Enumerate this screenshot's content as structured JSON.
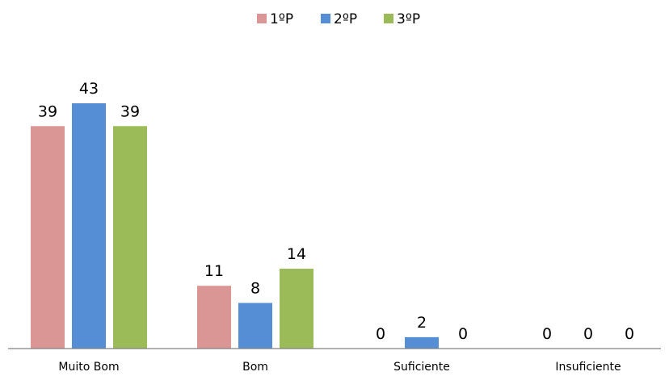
{
  "chart_data": {
    "type": "bar",
    "categories": [
      "Muito Bom",
      "Bom",
      "Suficiente",
      "Insuficiente"
    ],
    "series": [
      {
        "name": "1ºP",
        "color": "#d99694",
        "values": [
          39,
          11,
          0,
          0
        ]
      },
      {
        "name": "2ºP",
        "color": "#558ed5",
        "values": [
          43,
          8,
          2,
          0
        ]
      },
      {
        "name": "3ºP",
        "color": "#9bbb59",
        "values": [
          39,
          14,
          0,
          0
        ]
      }
    ],
    "ylim": [
      0,
      43
    ],
    "grid": false,
    "legend_position": "top-center",
    "data_labels": true
  }
}
